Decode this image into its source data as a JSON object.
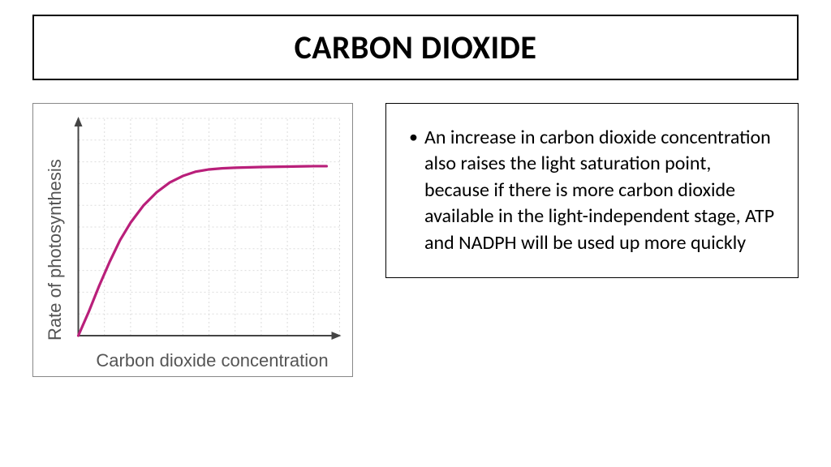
{
  "title": "CARBON DIOXIDE",
  "chart": {
    "type": "line",
    "x_label": "Carbon dioxide concentration",
    "y_label": "Rate of photosynthesis",
    "label_fontsize": 22,
    "label_color": "#555555",
    "line_color": "#b91f7a",
    "line_width": 3.2,
    "axis_color": "#444444",
    "axis_width": 2,
    "grid_color": "#dddddd",
    "grid_dash": "2,3",
    "background_color": "#ffffff",
    "xlim": [
      0,
      100
    ],
    "ylim": [
      0,
      100
    ],
    "xtick_step": 10,
    "ytick_step": 10,
    "data_points": [
      [
        0,
        0
      ],
      [
        4,
        11
      ],
      [
        8,
        23
      ],
      [
        12,
        34
      ],
      [
        16,
        44
      ],
      [
        20,
        52
      ],
      [
        25,
        60
      ],
      [
        30,
        66
      ],
      [
        35,
        70.5
      ],
      [
        40,
        73.5
      ],
      [
        45,
        75.5
      ],
      [
        50,
        76.5
      ],
      [
        55,
        77
      ],
      [
        60,
        77.3
      ],
      [
        70,
        77.6
      ],
      [
        80,
        77.8
      ],
      [
        90,
        78
      ],
      [
        95,
        78
      ]
    ],
    "arrowhead_size": 10
  },
  "bullet": {
    "text": "An increase in carbon dioxide concentration also raises the light saturation point, because if there is more carbon dioxide available in the light-independent stage, ATP and NADPH will be used up more quickly"
  }
}
